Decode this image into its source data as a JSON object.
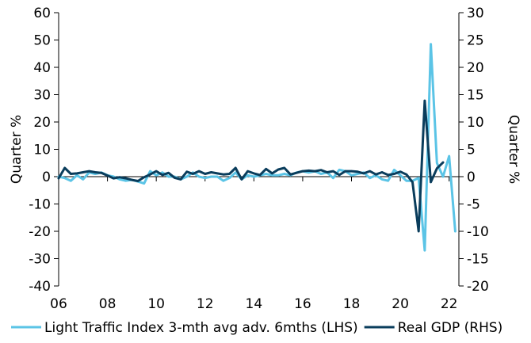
{
  "chart_data": {
    "type": "line",
    "title": "",
    "xlabel": "",
    "ylabel_left": "Quarter %",
    "ylabel_right": "Quarter %",
    "ylim_left": [
      -40,
      60
    ],
    "ylim_right": [
      -20,
      30
    ],
    "yticks_left": [
      -40,
      -30,
      -20,
      -10,
      0,
      10,
      20,
      30,
      40,
      50,
      60
    ],
    "yticks_right": [
      -20,
      -15,
      -10,
      -5,
      0,
      5,
      10,
      15,
      20,
      25,
      30
    ],
    "xlim": [
      2006,
      2022.4
    ],
    "xticks": [
      {
        "value": 2006,
        "label": "06"
      },
      {
        "value": 2008,
        "label": "08"
      },
      {
        "value": 2010,
        "label": "10"
      },
      {
        "value": 2012,
        "label": "12"
      },
      {
        "value": 2014,
        "label": "14"
      },
      {
        "value": 2016,
        "label": "16"
      },
      {
        "value": 2018,
        "label": "18"
      },
      {
        "value": 2020,
        "label": "20"
      },
      {
        "value": 2022,
        "label": "22"
      }
    ],
    "grid": false,
    "legend_position": "bottom",
    "series": [
      {
        "name": "Light Traffic Index 3-mth avg adv. 6mths (LHS)",
        "axis": "left",
        "color": "#5bc4e6",
        "points": [
          [
            2006.0,
            0
          ],
          [
            2006.25,
            -0.5
          ],
          [
            2006.5,
            -1.5
          ],
          [
            2006.75,
            0.5
          ],
          [
            2007.0,
            -1
          ],
          [
            2007.25,
            1.5
          ],
          [
            2007.5,
            1
          ],
          [
            2007.75,
            1.5
          ],
          [
            2008.0,
            0.5
          ],
          [
            2008.25,
            0
          ],
          [
            2008.5,
            -1
          ],
          [
            2008.75,
            -1.5
          ],
          [
            2009.0,
            -1.2
          ],
          [
            2009.25,
            -1.8
          ],
          [
            2009.5,
            -2.5
          ],
          [
            2009.75,
            2
          ],
          [
            2010.0,
            0.5
          ],
          [
            2010.25,
            1.5
          ],
          [
            2010.5,
            0
          ],
          [
            2010.75,
            0
          ],
          [
            2011.0,
            -1
          ],
          [
            2011.25,
            0
          ],
          [
            2011.5,
            1.5
          ],
          [
            2011.75,
            0
          ],
          [
            2012.0,
            -0.5
          ],
          [
            2012.25,
            0
          ],
          [
            2012.5,
            0
          ],
          [
            2012.75,
            -1.5
          ],
          [
            2013.0,
            -0.5
          ],
          [
            2013.25,
            1.5
          ],
          [
            2013.5,
            -1
          ],
          [
            2013.75,
            0.5
          ],
          [
            2014.0,
            0
          ],
          [
            2014.25,
            0.5
          ],
          [
            2014.5,
            1
          ],
          [
            2014.75,
            0.5
          ],
          [
            2015.0,
            0.5
          ],
          [
            2015.25,
            1
          ],
          [
            2015.5,
            0.5
          ],
          [
            2015.75,
            1.5
          ],
          [
            2016.0,
            2
          ],
          [
            2016.25,
            1.5
          ],
          [
            2016.5,
            2
          ],
          [
            2016.75,
            1
          ],
          [
            2017.0,
            1.5
          ],
          [
            2017.25,
            -0.5
          ],
          [
            2017.5,
            2.5
          ],
          [
            2017.75,
            2
          ],
          [
            2018.0,
            0.5
          ],
          [
            2018.25,
            1
          ],
          [
            2018.5,
            1.5
          ],
          [
            2018.75,
            -0.5
          ],
          [
            2019.0,
            0.5
          ],
          [
            2019.25,
            -1
          ],
          [
            2019.5,
            -1.5
          ],
          [
            2019.75,
            2.5
          ],
          [
            2020.0,
            0.5
          ],
          [
            2020.25,
            -1.5
          ],
          [
            2020.5,
            -1.5
          ],
          [
            2020.75,
            -0.5
          ],
          [
            2021.0,
            -27
          ],
          [
            2021.25,
            48.5
          ],
          [
            2021.5,
            5
          ],
          [
            2021.75,
            0
          ],
          [
            2022.0,
            7.5
          ],
          [
            2022.25,
            -20
          ]
        ]
      },
      {
        "name": "Real GDP (RHS)",
        "axis": "right",
        "color": "#0a3d5c",
        "points": [
          [
            2006.0,
            -0.3
          ],
          [
            2006.25,
            1.6
          ],
          [
            2006.5,
            0.5
          ],
          [
            2006.75,
            0.6
          ],
          [
            2007.0,
            0.8
          ],
          [
            2007.25,
            1.0
          ],
          [
            2007.5,
            0.8
          ],
          [
            2007.75,
            0.7
          ],
          [
            2008.0,
            0.2
          ],
          [
            2008.25,
            -0.3
          ],
          [
            2008.5,
            -0.1
          ],
          [
            2008.75,
            -0.3
          ],
          [
            2009.0,
            -0.6
          ],
          [
            2009.25,
            -0.8
          ],
          [
            2009.5,
            -0.1
          ],
          [
            2009.75,
            0.4
          ],
          [
            2010.0,
            1.0
          ],
          [
            2010.25,
            0.3
          ],
          [
            2010.5,
            0.7
          ],
          [
            2010.75,
            -0.2
          ],
          [
            2011.0,
            -0.5
          ],
          [
            2011.25,
            0.9
          ],
          [
            2011.5,
            0.5
          ],
          [
            2011.75,
            1.0
          ],
          [
            2012.0,
            0.5
          ],
          [
            2012.25,
            0.8
          ],
          [
            2012.5,
            0.6
          ],
          [
            2012.75,
            0.4
          ],
          [
            2013.0,
            0.5
          ],
          [
            2013.25,
            1.6
          ],
          [
            2013.5,
            -0.5
          ],
          [
            2013.75,
            1.0
          ],
          [
            2014.0,
            0.6
          ],
          [
            2014.25,
            0.3
          ],
          [
            2014.5,
            1.4
          ],
          [
            2014.75,
            0.6
          ],
          [
            2015.0,
            1.3
          ],
          [
            2015.25,
            1.6
          ],
          [
            2015.5,
            0.4
          ],
          [
            2015.75,
            0.7
          ],
          [
            2016.0,
            1.0
          ],
          [
            2016.25,
            1.1
          ],
          [
            2016.5,
            1.0
          ],
          [
            2016.75,
            1.2
          ],
          [
            2017.0,
            0.8
          ],
          [
            2017.25,
            1.0
          ],
          [
            2017.5,
            0.3
          ],
          [
            2017.75,
            1.0
          ],
          [
            2018.0,
            1.0
          ],
          [
            2018.25,
            0.9
          ],
          [
            2018.5,
            0.6
          ],
          [
            2018.75,
            1.0
          ],
          [
            2019.0,
            0.4
          ],
          [
            2019.25,
            0.8
          ],
          [
            2019.5,
            0.3
          ],
          [
            2019.75,
            0.5
          ],
          [
            2020.0,
            0.9
          ],
          [
            2020.25,
            0.4
          ],
          [
            2020.5,
            -1.0
          ],
          [
            2020.75,
            -10.0
          ],
          [
            2021.0,
            13.9
          ],
          [
            2021.25,
            -1.0
          ],
          [
            2021.5,
            1.5
          ],
          [
            2021.75,
            2.6
          ]
        ]
      }
    ]
  }
}
